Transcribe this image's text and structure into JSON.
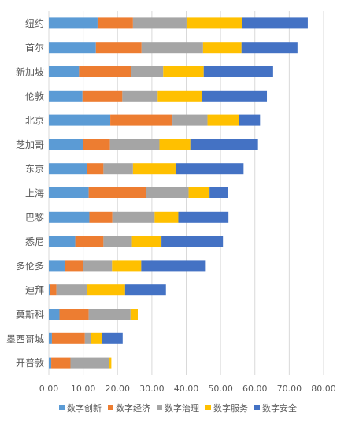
{
  "chart_data": {
    "type": "bar",
    "orientation": "horizontal",
    "stacked": true,
    "categories": [
      "纽约",
      "首尔",
      "新加坡",
      "伦敦",
      "北京",
      "芝加哥",
      "东京",
      "上海",
      "巴黎",
      "悉尼",
      "多伦多",
      "迪拜",
      "莫斯科",
      "墨西哥城",
      "开普敦"
    ],
    "series": [
      {
        "name": "数字创新",
        "color": "#5B9BD5",
        "values": [
          14.2,
          13.7,
          8.8,
          9.8,
          17.9,
          9.9,
          11.1,
          11.6,
          11.8,
          7.7,
          4.7,
          0.4,
          3.1,
          0.9,
          0.7
        ]
      },
      {
        "name": "数字经济",
        "color": "#ED7D31",
        "values": [
          10.3,
          13.3,
          15.1,
          11.6,
          18.1,
          7.9,
          4.8,
          16.6,
          6.7,
          8.2,
          5.2,
          1.8,
          8.5,
          9.6,
          5.6
        ]
      },
      {
        "name": "数字治理",
        "color": "#A5A5A5",
        "values": [
          15.6,
          17.9,
          9.4,
          10.3,
          10.2,
          14.4,
          8.6,
          12.5,
          12.3,
          8.3,
          8.5,
          8.8,
          12.2,
          1.8,
          11.2
        ]
      },
      {
        "name": "数字服务",
        "color": "#FFC000",
        "values": [
          16.1,
          11.2,
          11.8,
          12.9,
          9.2,
          9.0,
          12.4,
          6.1,
          6.9,
          8.6,
          8.5,
          11.2,
          2.1,
          3.2,
          0.7
        ]
      },
      {
        "name": "数字安全",
        "color": "#4472C4",
        "values": [
          19.2,
          16.3,
          20.2,
          18.9,
          6.1,
          19.7,
          19.8,
          5.3,
          14.6,
          17.9,
          18.8,
          11.9,
          0.0,
          6.0,
          0.0
        ]
      }
    ],
    "xlim": [
      0,
      80
    ],
    "xticks": [
      "0.00",
      "10.00",
      "20.00",
      "30.00",
      "40.00",
      "50.00",
      "60.00",
      "70.00",
      "80.00"
    ],
    "grid": true,
    "legend": "bottom",
    "title": "",
    "xlabel": "",
    "ylabel": ""
  }
}
